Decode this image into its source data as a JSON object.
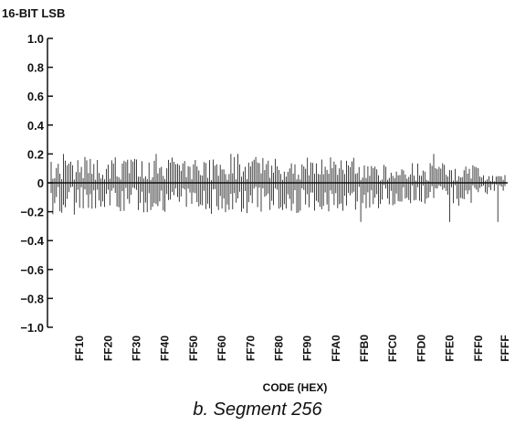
{
  "caption": "b. Segment 256",
  "chart_data": {
    "type": "line",
    "title": "",
    "ylabel": "16-BIT LSB",
    "xlabel": "CODE (HEX)",
    "ylim": [
      -1.0,
      1.0
    ],
    "y_ticks": [
      "1.0",
      "0.8",
      "0.6",
      "0.4",
      "0.2",
      "0",
      "−0.2",
      "−0.4",
      "−0.6",
      "−0.8",
      "−1.0"
    ],
    "x_ticks": [
      "FF10",
      "FF20",
      "FF30",
      "FF40",
      "FF50",
      "FF60",
      "FF70",
      "FF80",
      "FF90",
      "FFA0",
      "FFB0",
      "FFC0",
      "FFD0",
      "FFE0",
      "FFF0",
      "FFFF"
    ],
    "x_range": [
      "FF00",
      "FFFF"
    ],
    "grid": false,
    "series": [
      {
        "name": "",
        "envelope": {
          "upper_typical": 0.18,
          "lower_typical": -0.2,
          "upper_max": 0.2,
          "lower_min": -0.27,
          "note_regions": [
            {
              "from": "FF00",
              "to": "FFB8",
              "upper": 0.18,
              "lower": -0.22
            },
            {
              "from": "FFB8",
              "to": "FFF0",
              "upper": 0.14,
              "lower": -0.16
            },
            {
              "from": "FFF0",
              "to": "FFFF",
              "upper": 0.06,
              "lower": -0.08
            }
          ]
        }
      }
    ]
  }
}
